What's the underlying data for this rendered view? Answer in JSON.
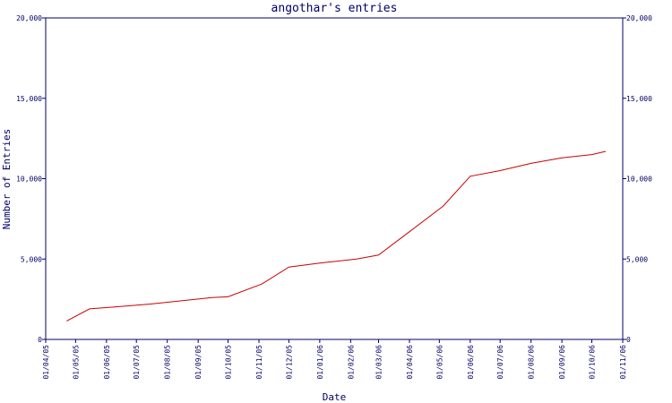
{
  "chart_data": {
    "type": "line",
    "title": "angothar's entries",
    "xlabel": "Date",
    "ylabel": "Number of Entries",
    "ylim": [
      0,
      20000
    ],
    "yticks": [
      {
        "value": 0,
        "label": "0"
      },
      {
        "value": 5000,
        "label": "5,000"
      },
      {
        "value": 10000,
        "label": "10,000"
      },
      {
        "value": 15000,
        "label": "15,000"
      },
      {
        "value": 20000,
        "label": "20,000"
      }
    ],
    "xticks": [
      "01/04/05",
      "01/05/05",
      "01/06/05",
      "01/07/05",
      "01/08/05",
      "01/09/05",
      "01/10/05",
      "01/11/05",
      "01/12/05",
      "01/01/06",
      "01/02/06",
      "01/03/06",
      "01/04/06",
      "01/05/06",
      "01/06/06",
      "01/07/06",
      "01/08/06",
      "01/09/06",
      "01/10/06",
      "01/11/06"
    ],
    "grid": false,
    "colors": {
      "line": "#cc0000",
      "axis": "#000066"
    },
    "series": [
      {
        "x": [
          "2005-04-22",
          "2005-05-15",
          "2005-06-15",
          "2005-07-15",
          "2005-08-15",
          "2005-09-15",
          "2005-10-01",
          "2005-11-04",
          "2005-12-01",
          "2006-01-01",
          "2006-02-07",
          "2006-03-01",
          "2006-04-01",
          "2006-05-05",
          "2006-06-01",
          "2006-07-01",
          "2006-08-01",
          "2006-09-01",
          "2006-10-01",
          "2006-10-15"
        ],
        "values": [
          1150,
          1900,
          2050,
          2200,
          2400,
          2600,
          2650,
          3450,
          4500,
          4750,
          5000,
          5250,
          6700,
          8300,
          10150,
          10500,
          10950,
          11300,
          11500,
          11700
        ]
      }
    ]
  }
}
